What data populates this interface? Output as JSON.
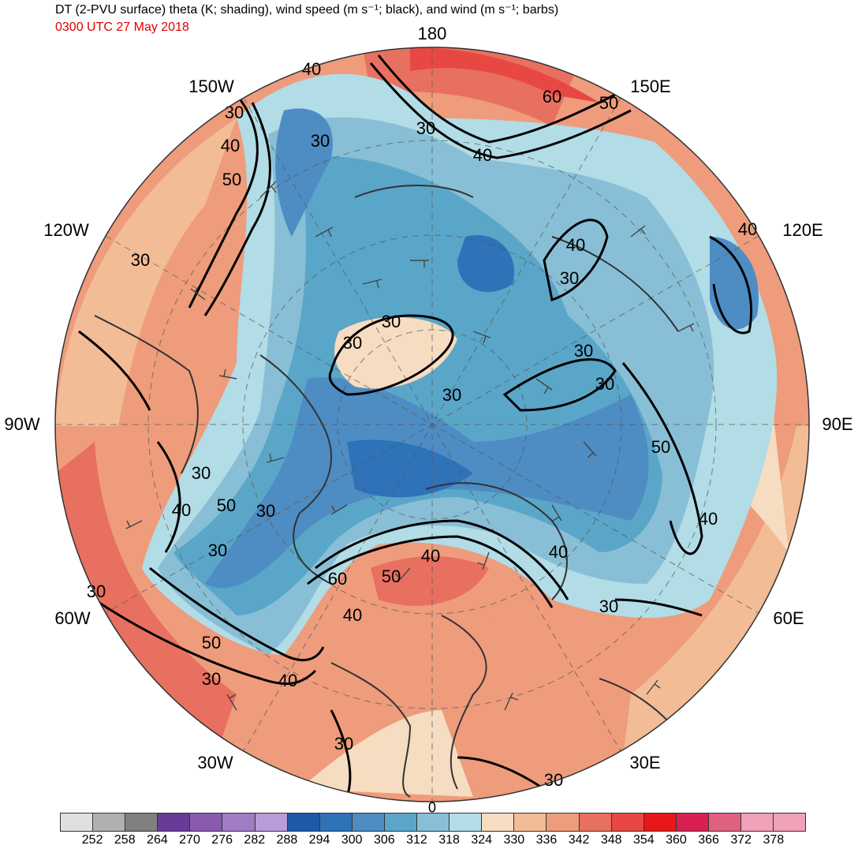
{
  "header": {
    "title": "DT (2-PVU surface) theta (K; shading), wind speed (m s⁻¹; black), and wind (m s⁻¹; barbs)",
    "valid_time": "0300 UTC 27 May 2018"
  },
  "map": {
    "projection": "north-polar-stereographic",
    "longitude_labels": {
      "top": "180",
      "upper_right": "150E",
      "right_upper": "120E",
      "right": "90E",
      "right_lower": "60E",
      "lower_right": "30E",
      "bottom": "0",
      "lower_left": "30W",
      "left_lower": "60W",
      "left": "90W",
      "left_upper": "120W",
      "upper_left": "150W"
    },
    "contour_labels": [
      "40",
      "30",
      "50",
      "30",
      "40",
      "60",
      "50",
      "30",
      "40",
      "30",
      "40",
      "50",
      "30",
      "30",
      "40",
      "120E",
      "30",
      "30",
      "30",
      "30",
      "50",
      "30",
      "30",
      "40",
      "30",
      "50",
      "40",
      "30",
      "40",
      "60",
      "50",
      "40",
      "30",
      "50",
      "30",
      "40",
      "30",
      "30",
      "30",
      "40"
    ],
    "colors": {
      "ocean_blue": "#4a86c0",
      "deep_blue": "#2f6db3",
      "light_blue": "#a8d2e0",
      "peach": "#f5c9a3",
      "salmon": "#ea8c70",
      "red": "#d9433a"
    }
  },
  "colorbar": {
    "levels": [
      "252",
      "258",
      "264",
      "270",
      "276",
      "282",
      "288",
      "294",
      "300",
      "306",
      "312",
      "318",
      "324",
      "330",
      "336",
      "342",
      "348",
      "354",
      "360",
      "366",
      "372",
      "378"
    ],
    "colors": [
      "#e0e0e0",
      "#b0b0b0",
      "#808080",
      "#6a3a9a",
      "#8a5ab0",
      "#a07cc4",
      "#b89cd8",
      "#1c5aa8",
      "#2e72b8",
      "#4e8cc4",
      "#5aa6c8",
      "#88bfd6",
      "#b2dce6",
      "#f6dcc0",
      "#f2bc96",
      "#ee9c7c",
      "#e87060",
      "#e84844",
      "#e81818",
      "#d82050",
      "#e06080",
      "#f0a0b8"
    ]
  }
}
